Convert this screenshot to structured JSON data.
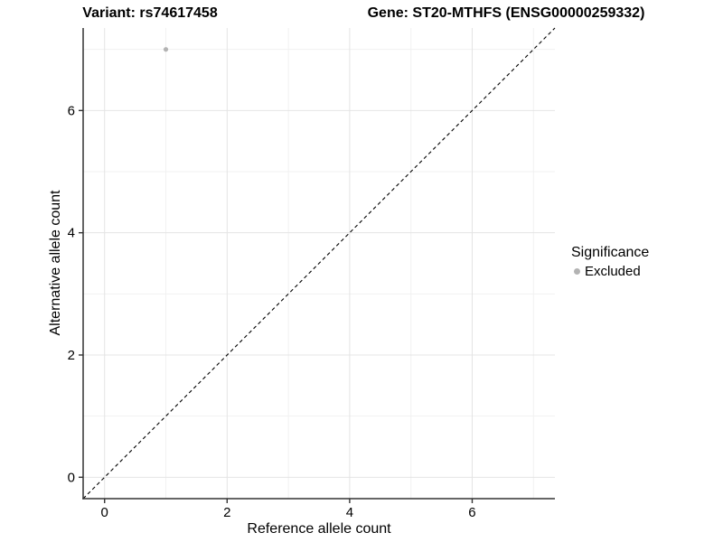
{
  "chart_data": {
    "type": "scatter",
    "title_left": "Variant: rs74617458",
    "title_right": "Gene: ST20-MTHFS (ENSG00000259332)",
    "xlabel": "Reference allele count",
    "ylabel": "Alternative allele count",
    "xlim": [
      -0.35,
      7.35
    ],
    "ylim": [
      -0.35,
      7.35
    ],
    "x_major_breaks": [
      0,
      2,
      4,
      6
    ],
    "y_major_breaks": [
      0,
      2,
      4,
      6
    ],
    "x_minor_breaks": [
      1,
      3,
      5,
      7
    ],
    "y_minor_breaks": [
      1,
      3,
      5,
      7
    ],
    "grid": true,
    "identity_line": {
      "style": "dashed",
      "x1": -0.35,
      "y1": -0.35,
      "x2": 7.35,
      "y2": 7.35,
      "color": "#000000"
    },
    "series": [
      {
        "name": "Excluded",
        "color": "#b3b3b3",
        "points": [
          {
            "x": 1,
            "y": 7
          }
        ]
      }
    ],
    "legend": {
      "title": "Significance",
      "position": "right",
      "entries": [
        {
          "label": "Excluded",
          "color": "#b3b3b3"
        }
      ]
    },
    "colors": {
      "background": "#ffffff",
      "axis_line": "#333333",
      "tick": "#333333",
      "grid_major": "#e4e4e4",
      "grid_minor": "#f1f1f1",
      "text": "#000000",
      "point": "#b3b3b3"
    }
  }
}
